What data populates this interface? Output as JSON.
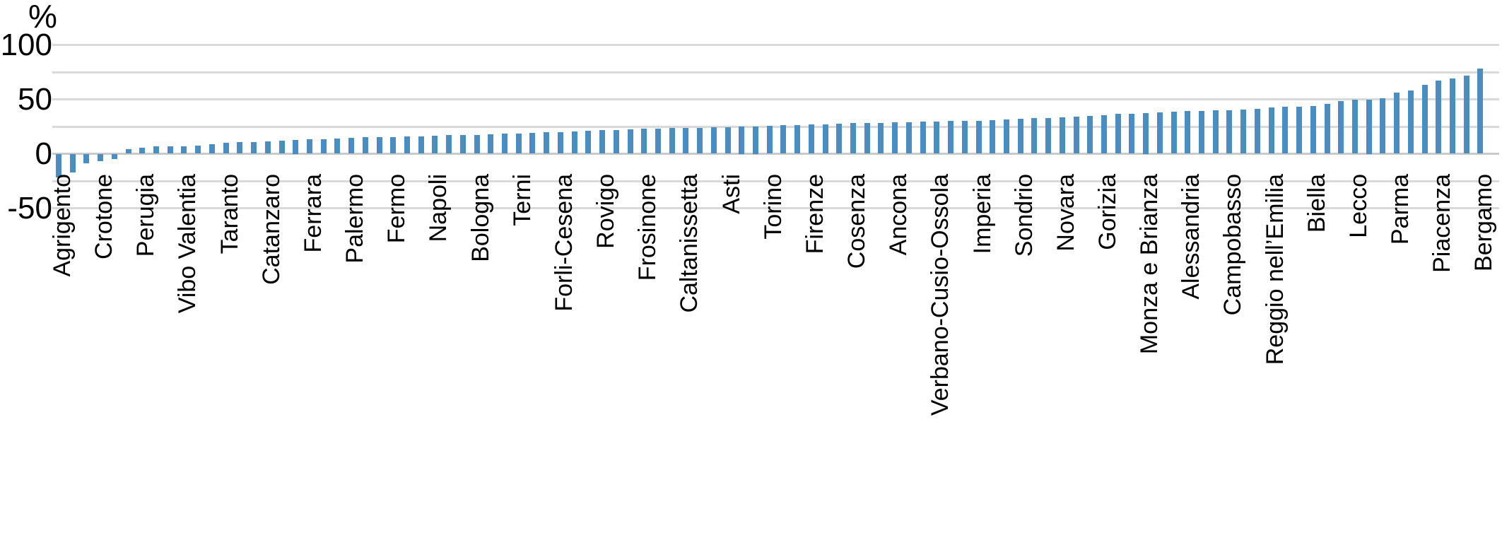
{
  "chart_data": {
    "type": "bar",
    "title": "",
    "ylabel": "%",
    "xlabel": "",
    "unit": "percent",
    "ylim": [
      -50,
      100
    ],
    "yticks": [
      100,
      50,
      0,
      -50
    ],
    "gridline_values": [
      100,
      75,
      50,
      25,
      0,
      -25,
      -50
    ],
    "grid": "on",
    "legend": "none",
    "bar_color": "#4a8dc0",
    "gridline_color": "#d9d9d9",
    "label_every": 3,
    "categories": [
      "Agrigento",
      "Crotone",
      "Perugia",
      "Vibo Valentia",
      "Taranto",
      "Catanzaro",
      "Ferrara",
      "Palermo",
      "Fermo",
      "Napoli",
      "Bologna",
      "Terni",
      "Forli-Cesena",
      "Rovigo",
      "Frosinone",
      "Caltanissetta",
      "Asti",
      "Torino",
      "Firenze",
      "Cosenza",
      "Ancona",
      "Verbano-Cusio-Ossola",
      "Imperia",
      "Sondrio",
      "Novara",
      "Gorizia",
      "Monza e Brianza",
      "Alessandria",
      "Campobasso",
      "Reggio nell’Emilia",
      "Biella",
      "Lecco",
      "Parma",
      "Piacenza",
      "Bergamo"
    ],
    "labeled_values": {
      "Agrigento": -22,
      "Crotone": -7,
      "Perugia": 5.5,
      "Vibo Valentia": 7,
      "Taranto": 10,
      "Catanzaro": 11.5,
      "Ferrara": 13,
      "Palermo": 14.5,
      "Fermo": 15.5,
      "Napoli": 16.5,
      "Bologna": 17.5,
      "Terni": 18.5,
      "Forli-Cesena": 20,
      "Rovigo": 21.5,
      "Frosinone": 23,
      "Caltanissetta": 23.5,
      "Asti": 24.5,
      "Torino": 25.5,
      "Firenze": 27,
      "Cosenza": 28,
      "Ancona": 29,
      "Verbano-Cusio-Ossola": 29.5,
      "Imperia": 30.5,
      "Sondrio": 32,
      "Novara": 33.5,
      "Gorizia": 35.5,
      "Monza e Brianza": 37.5,
      "Alessandria": 39,
      "Campobasso": 40,
      "Reggio nell’Emilia": 42.5,
      "Biella": 44,
      "Lecco": 49.5,
      "Parma": 56,
      "Piacenza": 67,
      "Bergamo": 78
    },
    "values": [
      -22,
      -17,
      -8.5,
      -7,
      -5,
      4,
      5.5,
      6.5,
      7,
      7,
      7.5,
      9,
      10,
      10.5,
      11,
      11.5,
      12,
      12.5,
      13,
      13.5,
      14,
      14.5,
      15,
      15,
      15.5,
      16,
      16,
      16.5,
      17,
      17,
      17.5,
      18,
      18.5,
      18.5,
      19,
      19.5,
      20,
      20.5,
      21,
      21.5,
      22,
      22.5,
      23,
      23,
      23.5,
      23.5,
      24,
      24.5,
      24.5,
      25,
      25,
      25.5,
      26,
      26.5,
      27,
      27,
      27.5,
      28,
      28,
      28.5,
      29,
      29,
      29.5,
      29.5,
      30,
      30.5,
      30.5,
      31,
      31.5,
      32,
      32.5,
      33,
      33.5,
      34,
      35,
      35.5,
      36.5,
      37,
      37.5,
      38,
      38.5,
      39,
      39.5,
      40,
      40,
      40.5,
      41,
      42.5,
      43,
      43.5,
      44,
      45.5,
      48.5,
      49.5,
      50,
      51,
      56,
      58,
      63,
      67,
      69,
      72,
      78
    ]
  }
}
